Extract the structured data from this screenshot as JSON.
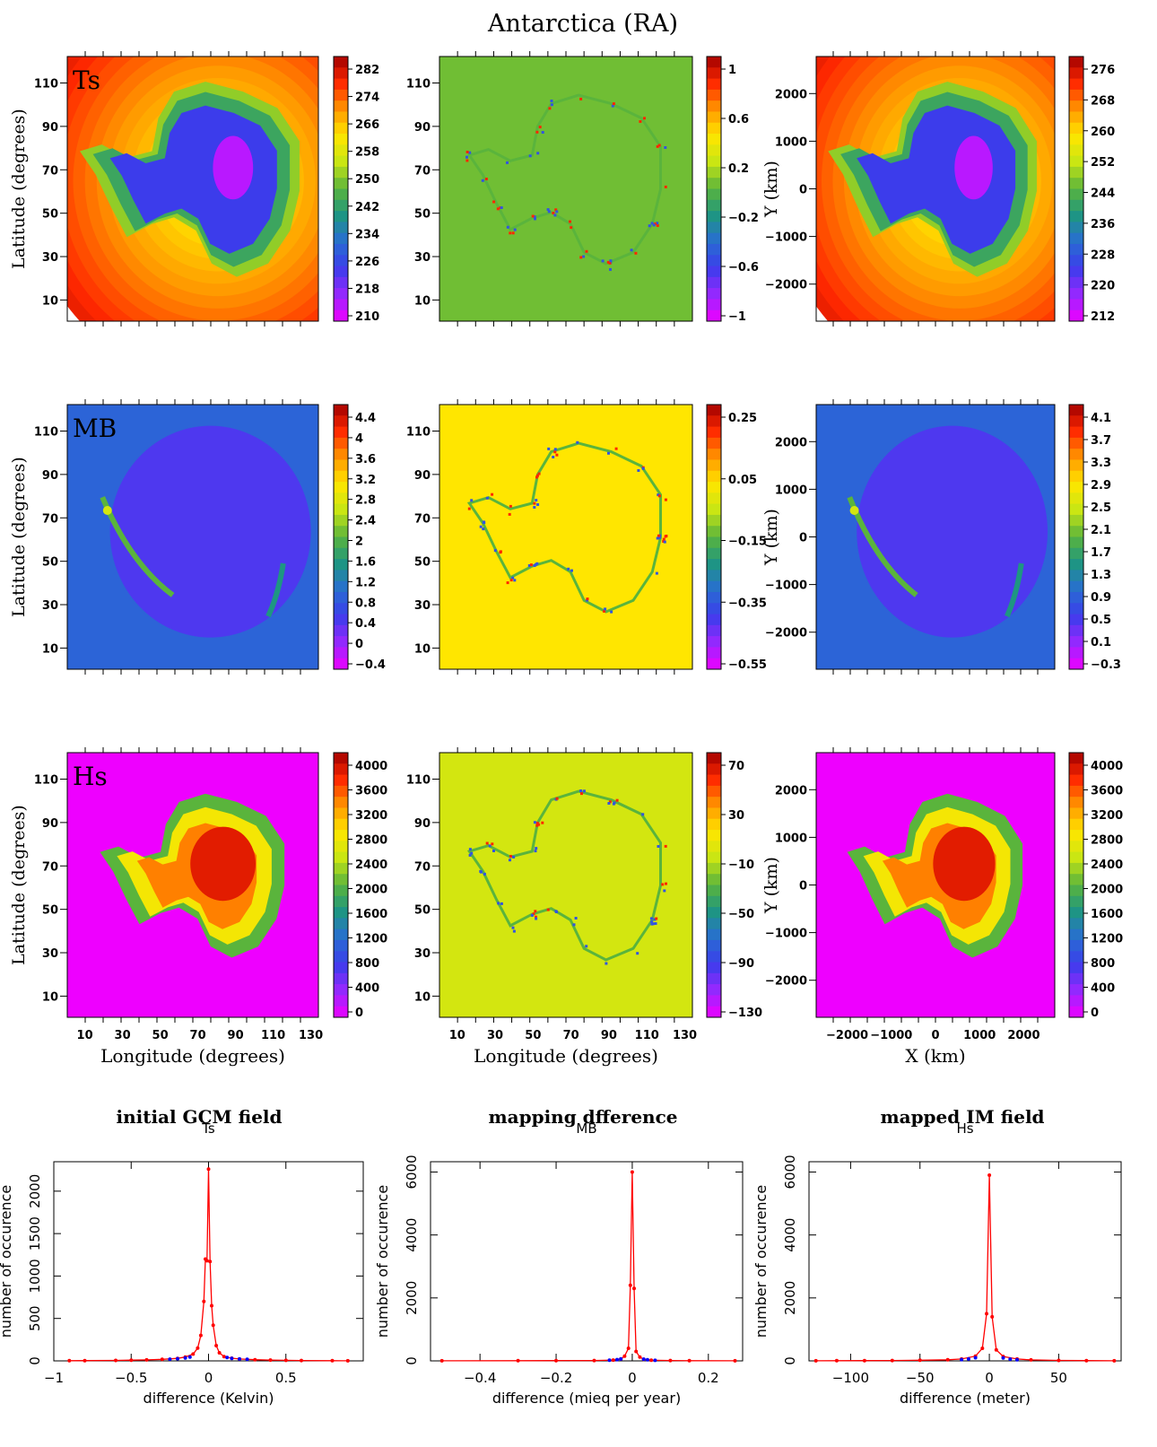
{
  "title": "Antarctica (RA)",
  "column_captions": [
    "initial GCM field",
    "mapping dfference",
    "mapped IM field"
  ],
  "chart_data": [
    {
      "type": "heatmap",
      "field": "Ts",
      "panel": "initial GCM field",
      "panel_label": "Ts",
      "ylabel": "Latitude (degrees)",
      "xlabel": "",
      "yticks": [
        "10",
        "30",
        "50",
        "70",
        "90",
        "110"
      ],
      "xticks": [],
      "colorbar_ticks": [
        "282",
        "274",
        "266",
        "258",
        "250",
        "242",
        "234",
        "226",
        "218",
        "210"
      ],
      "colormap": "rainbow",
      "pattern": "ts"
    },
    {
      "type": "heatmap",
      "field": "Ts",
      "panel": "mapping dfference",
      "panel_label": "",
      "ylabel": "",
      "xlabel": "",
      "yticks": [
        "10",
        "30",
        "50",
        "70",
        "90",
        "110"
      ],
      "xticks": [],
      "colorbar_ticks": [
        "1",
        "0.6",
        "0.2",
        "−0.2",
        "−0.6",
        "−1"
      ],
      "colormap": "rainbow",
      "pattern": "diff"
    },
    {
      "type": "heatmap",
      "field": "Ts",
      "panel": "mapped IM field",
      "panel_label": "",
      "ylabel": "Y (km)",
      "xlabel": "",
      "yticks": [
        "2000",
        "1000",
        "0",
        "−1000",
        "−2000"
      ],
      "xticks": [],
      "colorbar_ticks": [
        "276",
        "268",
        "260",
        "252",
        "244",
        "236",
        "228",
        "220",
        "212"
      ],
      "colormap": "rainbow",
      "pattern": "ts"
    },
    {
      "type": "heatmap",
      "field": "MB",
      "panel": "initial GCM field",
      "panel_label": "MB",
      "ylabel": "Latitude (degrees)",
      "xlabel": "",
      "yticks": [
        "10",
        "30",
        "50",
        "70",
        "90",
        "110"
      ],
      "xticks": [],
      "colorbar_ticks": [
        "4.4",
        "4",
        "3.6",
        "3.2",
        "2.8",
        "2.4",
        "2",
        "1.6",
        "1.2",
        "0.8",
        "0.4",
        "0",
        "−0.4"
      ],
      "colormap": "rainbow",
      "pattern": "mb"
    },
    {
      "type": "heatmap",
      "field": "MB",
      "panel": "mapping dfference",
      "panel_label": "",
      "ylabel": "",
      "xlabel": "",
      "yticks": [
        "10",
        "30",
        "50",
        "70",
        "90",
        "110"
      ],
      "xticks": [],
      "colorbar_ticks": [
        "0.25",
        "0.05",
        "−0.15",
        "−0.35",
        "−0.55"
      ],
      "colormap": "rainbow",
      "pattern": "mbdiff"
    },
    {
      "type": "heatmap",
      "field": "MB",
      "panel": "mapped IM field",
      "panel_label": "",
      "ylabel": "Y (km)",
      "xlabel": "",
      "yticks": [
        "2000",
        "1000",
        "0",
        "−1000",
        "−2000"
      ],
      "xticks": [],
      "colorbar_ticks": [
        "4.1",
        "3.7",
        "3.3",
        "2.9",
        "2.5",
        "2.1",
        "1.7",
        "1.3",
        "0.9",
        "0.5",
        "0.1",
        "−0.3"
      ],
      "colormap": "rainbow",
      "pattern": "mb"
    },
    {
      "type": "heatmap",
      "field": "Hs",
      "panel": "initial GCM field",
      "panel_label": "Hs",
      "ylabel": "Latitude (degrees)",
      "xlabel": "Longitude (degrees)",
      "yticks": [
        "10",
        "30",
        "50",
        "70",
        "90",
        "110"
      ],
      "xticks": [
        "10",
        "30",
        "50",
        "70",
        "90",
        "110",
        "130"
      ],
      "colorbar_ticks": [
        "4000",
        "3600",
        "3200",
        "2800",
        "2400",
        "2000",
        "1600",
        "1200",
        "800",
        "400",
        "0"
      ],
      "colormap": "rainbow",
      "pattern": "hs"
    },
    {
      "type": "heatmap",
      "field": "Hs",
      "panel": "mapping dfference",
      "panel_label": "",
      "ylabel": "",
      "xlabel": "Longitude (degrees)",
      "yticks": [
        "10",
        "30",
        "50",
        "70",
        "90",
        "110"
      ],
      "xticks": [
        "10",
        "30",
        "50",
        "70",
        "90",
        "110",
        "130"
      ],
      "colorbar_ticks": [
        "70",
        "30",
        "−10",
        "−50",
        "−90",
        "−130"
      ],
      "colormap": "rainbow",
      "pattern": "hsdiff"
    },
    {
      "type": "heatmap",
      "field": "Hs",
      "panel": "mapped IM field",
      "panel_label": "",
      "ylabel": "Y (km)",
      "xlabel": "X (km)",
      "yticks": [
        "2000",
        "1000",
        "0",
        "−1000",
        "−2000"
      ],
      "xticks": [
        "−2000",
        "−1000",
        "0",
        "1000",
        "2000"
      ],
      "colorbar_ticks": [
        "4000",
        "3600",
        "3200",
        "2800",
        "2400",
        "2000",
        "1600",
        "1200",
        "800",
        "400",
        "0"
      ],
      "colormap": "rainbow",
      "pattern": "hs"
    },
    {
      "type": "line",
      "title": "Ts",
      "xlabel": "difference (Kelvin)",
      "ylabel": "number of occurence",
      "xlim": [
        -1,
        1
      ],
      "ylim": [
        0,
        2300
      ],
      "xticks": [
        "−1",
        "−0.5",
        "0",
        "0.5"
      ],
      "yticks": [
        "0",
        "500",
        "1000",
        "1500",
        "2000"
      ],
      "series": [
        {
          "color": "#ff0000",
          "x": [
            -0.9,
            -0.8,
            -0.6,
            -0.5,
            -0.4,
            -0.3,
            -0.2,
            -0.15,
            -0.1,
            -0.07,
            -0.05,
            -0.03,
            -0.02,
            -0.01,
            0,
            0.01,
            0.02,
            0.03,
            0.05,
            0.07,
            0.1,
            0.15,
            0.2,
            0.3,
            0.4,
            0.5,
            0.6,
            0.8,
            0.9
          ],
          "y": [
            2,
            3,
            5,
            8,
            12,
            18,
            30,
            45,
            80,
            150,
            300,
            700,
            1200,
            1180,
            2260,
            1170,
            650,
            420,
            180,
            95,
            50,
            32,
            22,
            14,
            10,
            6,
            4,
            2,
            1
          ]
        },
        {
          "color": "#0000ff",
          "x": [
            -0.25,
            -0.2,
            -0.15,
            -0.12,
            0.12,
            0.15,
            0.2,
            0.25
          ],
          "y": [
            20,
            25,
            35,
            45,
            40,
            30,
            22,
            18
          ]
        }
      ]
    },
    {
      "type": "line",
      "title": "MB",
      "xlabel": "difference (mieq per year)",
      "ylabel": "number of occurence",
      "xlim": [
        -0.53,
        0.29
      ],
      "ylim": [
        0,
        6200
      ],
      "xticks": [
        "−0.4",
        "−0.2",
        "0",
        "0.2"
      ],
      "yticks": [
        "0",
        "2000",
        "4000",
        "6000"
      ],
      "series": [
        {
          "color": "#ff0000",
          "x": [
            -0.5,
            -0.3,
            -0.2,
            -0.1,
            -0.05,
            -0.03,
            -0.02,
            -0.01,
            -0.005,
            0,
            0.005,
            0.01,
            0.02,
            0.03,
            0.05,
            0.1,
            0.15,
            0.27
          ],
          "y": [
            3,
            5,
            8,
            12,
            25,
            60,
            150,
            400,
            2400,
            6000,
            2300,
            300,
            120,
            50,
            20,
            10,
            6,
            3
          ]
        },
        {
          "color": "#0000ff",
          "x": [
            -0.06,
            -0.04,
            -0.03,
            0.03,
            0.04,
            0.06
          ],
          "y": [
            20,
            40,
            60,
            55,
            35,
            18
          ]
        }
      ]
    },
    {
      "type": "line",
      "title": "Hs",
      "xlabel": "difference (meter)",
      "ylabel": "number of occurence",
      "xlim": [
        -130,
        95
      ],
      "ylim": [
        0,
        6200
      ],
      "xticks": [
        "−100",
        "−50",
        "0",
        "50"
      ],
      "yticks": [
        "0",
        "2000",
        "4000",
        "6000"
      ],
      "series": [
        {
          "color": "#ff0000",
          "x": [
            -125,
            -110,
            -90,
            -70,
            -50,
            -30,
            -20,
            -10,
            -5,
            -2,
            0,
            2,
            5,
            10,
            20,
            30,
            50,
            70,
            90
          ],
          "y": [
            3,
            5,
            8,
            12,
            20,
            35,
            60,
            150,
            400,
            1500,
            5900,
            1400,
            350,
            140,
            60,
            30,
            15,
            8,
            4
          ]
        },
        {
          "color": "#0000ff",
          "x": [
            -20,
            -15,
            -10,
            10,
            15,
            20
          ],
          "y": [
            40,
            60,
            100,
            90,
            55,
            35
          ]
        }
      ]
    }
  ]
}
